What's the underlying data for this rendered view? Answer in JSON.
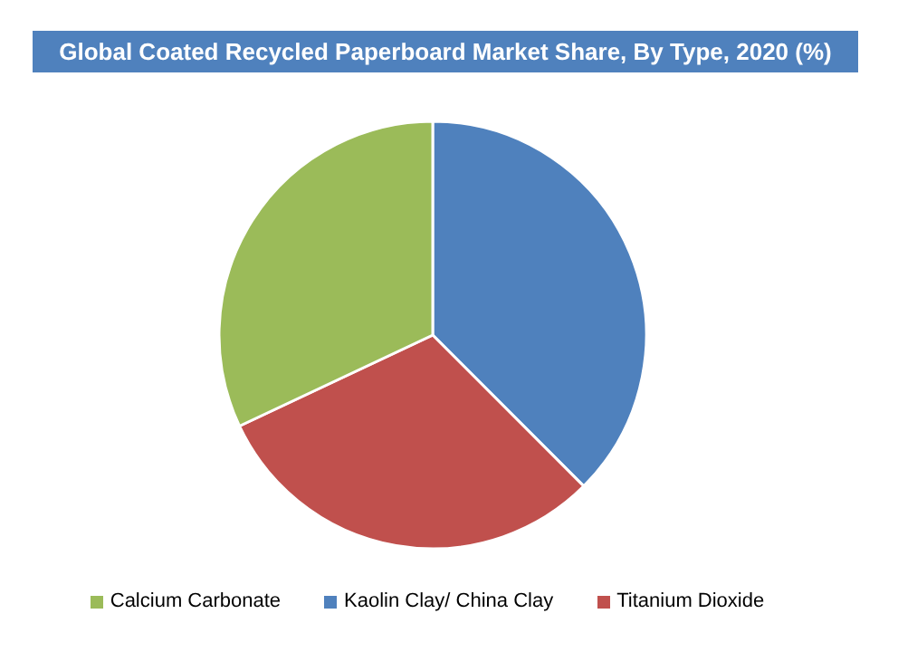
{
  "chart_data": {
    "type": "pie",
    "title": "Global Coated Recycled Paperboard Market Share, By Type, 2020 (%)",
    "categories": [
      "Kaolin Clay/ China Clay",
      "Titanium Dioxide",
      "Calcium Carbonate"
    ],
    "values": [
      37.5,
      30.5,
      32
    ],
    "colors": [
      "#4f81bd",
      "#c0504d",
      "#9bbb59"
    ],
    "legend": "bottom"
  }
}
